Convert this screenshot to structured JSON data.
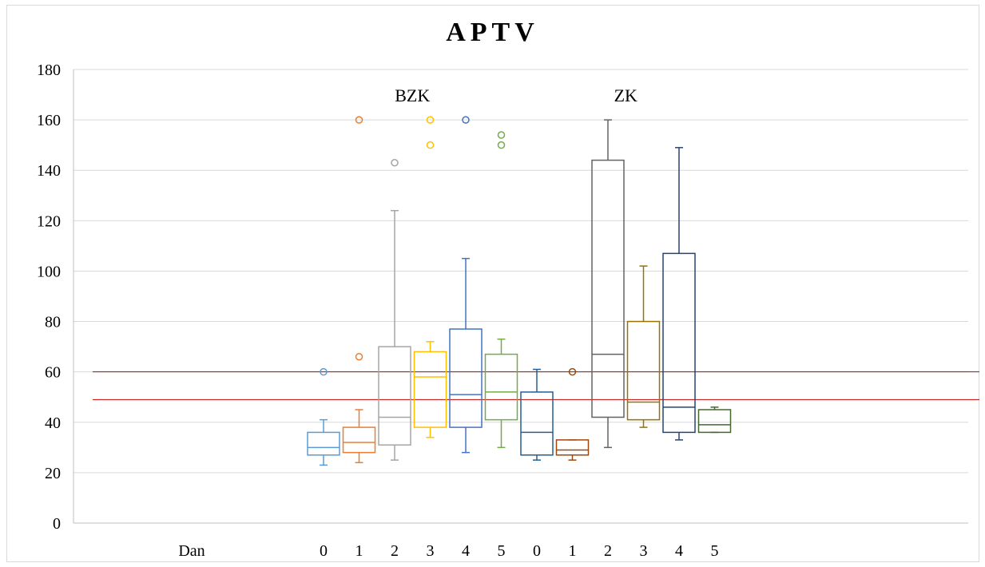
{
  "chart_data": {
    "type": "box",
    "title": "APTV",
    "xlabel": "Dan",
    "ylabel": "",
    "ylim": [
      0,
      180
    ],
    "yticks": [
      0,
      20,
      40,
      60,
      80,
      100,
      120,
      140,
      160,
      180
    ],
    "grid": true,
    "groups": [
      {
        "label": "BZK",
        "boxes": [
          {
            "day": "0",
            "color": "#5b9bd5",
            "min": 23,
            "q1": 27,
            "median": 30,
            "q3": 36,
            "max": 41,
            "outliers": [
              60
            ]
          },
          {
            "day": "1",
            "color": "#ed7d31",
            "min": 24,
            "q1": 28,
            "median": 32,
            "q3": 38,
            "max": 45,
            "outliers": [
              66,
              160
            ]
          },
          {
            "day": "2",
            "color": "#a5a5a5",
            "min": 25,
            "q1": 31,
            "median": 42,
            "q3": 70,
            "max": 124,
            "outliers": [
              143
            ]
          },
          {
            "day": "3",
            "color": "#ffc000",
            "min": 34,
            "q1": 38,
            "median": 58,
            "q3": 68,
            "max": 72,
            "outliers": [
              150,
              160
            ]
          },
          {
            "day": "4",
            "color": "#4472c4",
            "min": 28,
            "q1": 38,
            "median": 51,
            "q3": 77,
            "max": 105,
            "outliers": [
              160
            ]
          },
          {
            "day": "5",
            "color": "#70ad47",
            "min": 30,
            "q1": 41,
            "median": 52,
            "q3": 67,
            "max": 73,
            "outliers": [
              150,
              154
            ]
          }
        ]
      },
      {
        "label": "ZK",
        "boxes": [
          {
            "day": "0",
            "color": "#255e91",
            "min": 25,
            "q1": 27,
            "median": 36,
            "q3": 52,
            "max": 61,
            "outliers": []
          },
          {
            "day": "1",
            "color": "#9e480e",
            "min": 25,
            "q1": 27,
            "median": 29,
            "q3": 33,
            "max": 33,
            "outliers": [
              60
            ]
          },
          {
            "day": "2",
            "color": "#636363",
            "min": 30,
            "q1": 42,
            "median": 67,
            "q3": 144,
            "max": 160,
            "outliers": []
          },
          {
            "day": "3",
            "color": "#997300",
            "min": 38,
            "q1": 41,
            "median": 48,
            "q3": 80,
            "max": 102,
            "outliers": []
          },
          {
            "day": "4",
            "color": "#264478",
            "min": 33,
            "q1": 36,
            "median": 46,
            "q3": 107,
            "max": 149,
            "outliers": []
          },
          {
            "day": "5",
            "color": "#43682b",
            "min": 36,
            "q1": 36,
            "median": 39,
            "q3": 45,
            "max": 46,
            "outliers": []
          }
        ]
      }
    ],
    "reference_lines": [
      {
        "value": 60,
        "color": "#c00000"
      },
      {
        "value": 49,
        "color": "#c00000"
      }
    ]
  }
}
